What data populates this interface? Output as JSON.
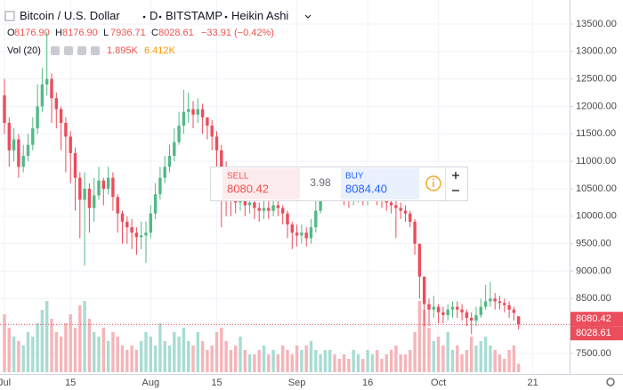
{
  "chart_data": {
    "type": "candlestick",
    "title": "Bitcoin / U.S. Dollar",
    "interval": "D",
    "exchange": "BITSTAMP",
    "chart_style": "Heikin Ashi",
    "ohlc_legend": [
      {
        "label": "O",
        "value": "8176.90"
      },
      {
        "label": "H",
        "value": "8176.90"
      },
      {
        "label": "L",
        "value": "7936.71"
      },
      {
        "label": "C",
        "value": "8028.61"
      }
    ],
    "change": "−33.91 (−0.42%)",
    "volume_legend": {
      "name": "Vol (20)",
      "volume": "1.895K",
      "average": "6.412K"
    },
    "categories": [
      "Jul",
      null,
      null,
      null,
      null,
      null,
      null,
      null,
      null,
      null,
      null,
      null,
      null,
      null,
      "15",
      null,
      null,
      null,
      null,
      null,
      null,
      null,
      null,
      null,
      null,
      null,
      null,
      null,
      null,
      null,
      null,
      "Aug",
      null,
      null,
      null,
      null,
      null,
      null,
      null,
      null,
      null,
      null,
      null,
      null,
      null,
      "15",
      null,
      null,
      null,
      null,
      null,
      null,
      null,
      null,
      null,
      null,
      null,
      null,
      null,
      null,
      null,
      null,
      "Sep",
      null,
      null,
      null,
      null,
      null,
      null,
      null,
      null,
      null,
      null,
      null,
      null,
      null,
      null,
      "16",
      null,
      null,
      null,
      null,
      null,
      null,
      null,
      null,
      null,
      null,
      null,
      null,
      null,
      null,
      "Oct",
      null,
      null,
      null,
      null,
      null,
      null,
      null,
      null,
      null,
      null,
      null,
      null,
      null,
      null,
      null,
      null,
      null,
      null,
      null,
      "21"
    ],
    "open": [
      12200,
      11700,
      11200,
      11400,
      10900,
      11100,
      11300,
      11600,
      12000,
      12400,
      12500,
      12150,
      11950,
      11700,
      11450,
      11150,
      10700,
      10300,
      10500,
      10150,
      10380,
      10650,
      10500,
      10700,
      10350,
      10050,
      9900,
      9800,
      9700,
      9620,
      9650,
      9700,
      10050,
      10400,
      10700,
      10900,
      11100,
      11350,
      11650,
      11900,
      11950,
      11850,
      11950,
      11800,
      11650,
      11450,
      11200,
      10900,
      10600,
      10450,
      10250,
      10300,
      10200,
      10250,
      10150,
      10100,
      10150,
      10100,
      10200,
      10150,
      10050,
      9850,
      9700,
      9650,
      9700,
      9600,
      9800,
      10100,
      10350,
      10500,
      10650,
      10600,
      10500,
      10400,
      10350,
      10400,
      10450,
      10350,
      10400,
      10450,
      10350,
      10300,
      10250,
      10200,
      10150,
      10100,
      10050,
      9900,
      9500,
      8900,
      8400,
      8300,
      8350,
      8250,
      8200,
      8300,
      8350,
      8300,
      8250,
      8150,
      8100,
      8200,
      8350,
      8450,
      8500,
      8450,
      8420,
      8380,
      8300,
      8176.9,
      null,
      null,
      null
    ],
    "high": [
      12500,
      11800,
      11600,
      11500,
      11300,
      11500,
      11800,
      12400,
      12700,
      13350,
      12600,
      12250,
      12000,
      11800,
      11550,
      11250,
      10800,
      10800,
      10600,
      10700,
      10900,
      10700,
      10900,
      10800,
      10400,
      10100,
      10000,
      9950,
      9800,
      9900,
      9900,
      10200,
      10600,
      10900,
      11100,
      11300,
      11600,
      11900,
      12300,
      12250,
      12100,
      12150,
      12050,
      11800,
      11750,
      11550,
      11300,
      11000,
      10700,
      10500,
      10500,
      10400,
      10400,
      10400,
      10250,
      10300,
      10300,
      10350,
      10300,
      10200,
      10100,
      9900,
      9850,
      9850,
      9800,
      9950,
      10300,
      10600,
      10750,
      10900,
      10800,
      10700,
      10600,
      10550,
      10550,
      10600,
      10550,
      10550,
      10600,
      10550,
      10450,
      10400,
      10350,
      10300,
      10250,
      10200,
      10100,
      9950,
      9500,
      8900,
      8500,
      8550,
      8400,
      8350,
      8400,
      8450,
      8450,
      8400,
      8300,
      8250,
      8350,
      8500,
      8750,
      8800,
      8600,
      8550,
      8500,
      8450,
      8350,
      8176.9,
      null,
      null,
      null
    ],
    "low": [
      11500,
      10900,
      11000,
      10700,
      10800,
      11000,
      11200,
      11500,
      11900,
      12200,
      11700,
      11600,
      11200,
      10800,
      10600,
      10100,
      9600,
      9100,
      9700,
      9900,
      10300,
      10200,
      10400,
      10100,
      9700,
      9500,
      9500,
      9400,
      9300,
      9400,
      9150,
      9600,
      9950,
      10300,
      10600,
      10800,
      11000,
      11300,
      11500,
      11700,
      11600,
      11700,
      11500,
      11400,
      11200,
      10700,
      9800,
      10000,
      10000,
      10050,
      10100,
      10000,
      10050,
      9950,
      9900,
      9950,
      9950,
      10000,
      10000,
      9850,
      9600,
      9400,
      9450,
      9500,
      9450,
      9500,
      9700,
      10050,
      10300,
      10400,
      10400,
      10300,
      10200,
      10150,
      10200,
      10250,
      10200,
      10200,
      10300,
      10200,
      10150,
      10100,
      10050,
      9600,
      9950,
      9900,
      9800,
      9300,
      8500,
      8000,
      8000,
      8150,
      8050,
      8050,
      8100,
      8150,
      8150,
      8100,
      8000,
      7850,
      8000,
      8150,
      8300,
      8350,
      8300,
      8300,
      8250,
      8150,
      8100,
      7936.71,
      null,
      null,
      null
    ],
    "close": [
      11700,
      11200,
      11400,
      10900,
      11100,
      11300,
      11600,
      12000,
      12400,
      12500,
      12150,
      11950,
      11700,
      11450,
      11150,
      10700,
      10300,
      10500,
      10150,
      10380,
      10650,
      10500,
      10700,
      10350,
      10050,
      9900,
      9800,
      9700,
      9620,
      9650,
      9700,
      10050,
      10400,
      10700,
      10900,
      11100,
      11350,
      11650,
      11900,
      11950,
      11850,
      11950,
      11800,
      11650,
      11450,
      11200,
      10900,
      10600,
      10450,
      10250,
      10300,
      10200,
      10250,
      10150,
      10100,
      10150,
      10100,
      10200,
      10150,
      10050,
      9850,
      9700,
      9650,
      9700,
      9600,
      9800,
      10100,
      10350,
      10500,
      10650,
      10600,
      10500,
      10400,
      10350,
      10400,
      10450,
      10350,
      10400,
      10450,
      10350,
      10300,
      10250,
      10200,
      10150,
      10100,
      10050,
      9900,
      9500,
      8900,
      8400,
      8300,
      8350,
      8250,
      8200,
      8300,
      8350,
      8300,
      8250,
      8150,
      8100,
      8200,
      8350,
      8450,
      8500,
      8450,
      8420,
      8380,
      8300,
      8240,
      8028.61,
      null,
      null,
      null
    ],
    "volume": [
      13,
      10,
      8,
      7,
      6,
      9,
      8,
      11,
      14,
      16,
      12,
      9,
      8,
      11,
      13,
      10,
      15,
      16,
      12,
      9,
      8,
      10,
      7,
      9,
      8,
      6,
      5,
      6,
      5,
      7,
      9,
      8,
      6,
      11,
      7,
      6,
      9,
      8,
      10,
      7,
      6,
      9,
      7,
      5,
      6,
      9,
      10,
      7,
      5,
      6,
      8,
      5,
      4,
      4,
      5,
      6,
      4,
      5,
      4,
      6,
      5,
      4,
      6,
      5,
      6,
      7,
      5,
      4,
      5,
      5,
      4,
      3,
      4,
      3,
      5,
      4,
      3,
      5,
      4,
      5,
      3,
      4,
      5,
      6,
      4,
      4,
      5,
      9,
      16,
      14,
      10,
      7,
      8,
      6,
      9,
      5,
      6,
      4,
      5,
      8,
      6,
      7,
      8,
      6,
      5,
      4,
      3,
      5,
      6,
      1.895,
      null,
      null,
      null
    ],
    "up_color": "#53b987",
    "down_color": "#eb4d5c",
    "up_volume_color": "#a9dcd3",
    "down_volume_color": "#f5b5b8",
    "ylim": [
      7127,
      13938
    ],
    "yticks": [
      {
        "value": 7500,
        "label": "7500.00"
      },
      {
        "value": 8000,
        "label": "8000.00"
      },
      {
        "value": 8500,
        "label": "8500.00"
      },
      {
        "value": 9000,
        "label": "9000.00"
      },
      {
        "value": 9500,
        "label": "9500.00"
      },
      {
        "value": 10000,
        "label": "10000.00"
      },
      {
        "value": 10500,
        "label": "10500.00"
      },
      {
        "value": 11000,
        "label": "11000.00"
      },
      {
        "value": 11500,
        "label": "11500.00"
      },
      {
        "value": 12000,
        "label": "12000.00"
      },
      {
        "value": 12500,
        "label": "12500.00"
      },
      {
        "value": 13000,
        "label": "13000.00"
      },
      {
        "value": 13500,
        "label": "13500.00"
      }
    ],
    "grid": true,
    "price_labels": [
      {
        "value": 8080.42,
        "label": "8080.42"
      },
      {
        "value": 8028.61,
        "label": "8028.61"
      }
    ],
    "trade_widget": {
      "sell_label": "SELL",
      "sell_price": "8080.42",
      "spread": "3.98",
      "buy_label": "BUY",
      "buy_price": "8084.40"
    }
  }
}
